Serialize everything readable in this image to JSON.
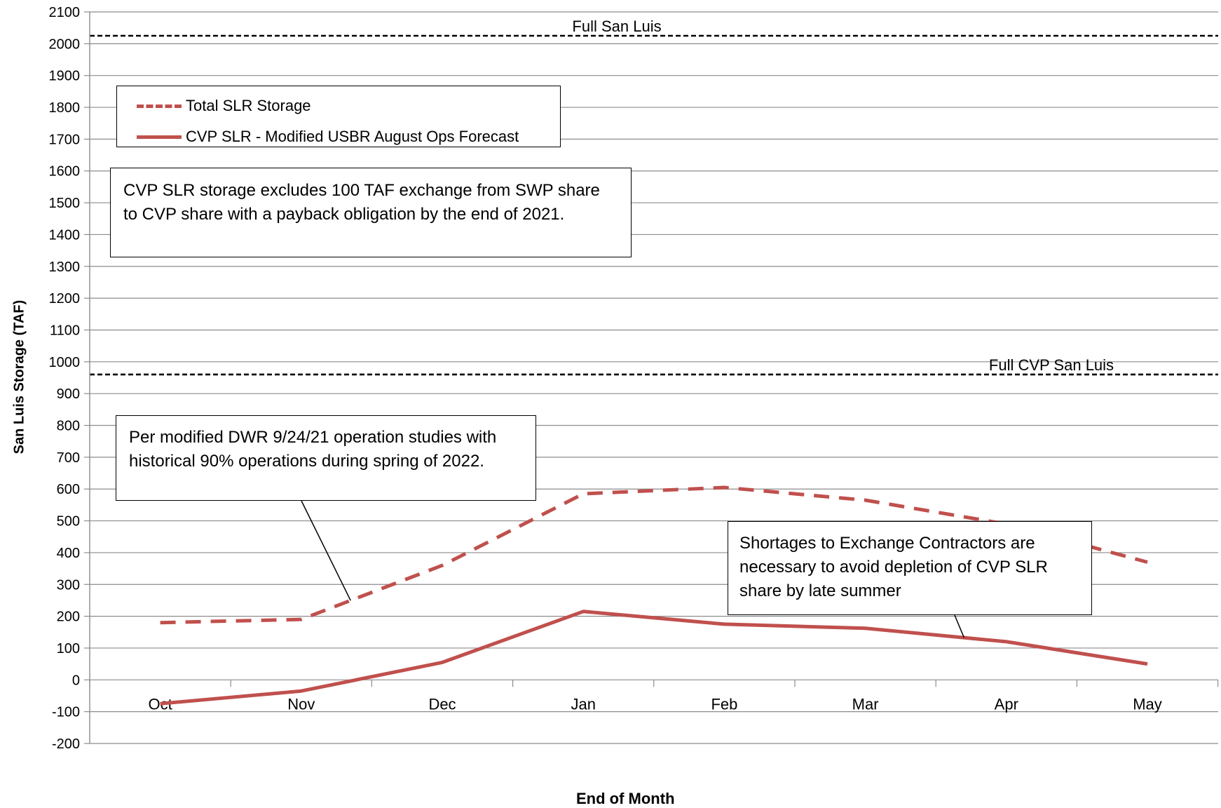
{
  "chart_data": {
    "type": "line",
    "xlabel": "End of Month",
    "ylabel": "San Luis Storage (TAF)",
    "categories": [
      "Oct",
      "Nov",
      "Dec",
      "Jan",
      "Feb",
      "Mar",
      "Apr",
      "May"
    ],
    "ylim": [
      -200,
      2100
    ],
    "yticks": [
      "2100",
      "2000",
      "1900",
      "1800",
      "1700",
      "1600",
      "1500",
      "1400",
      "1300",
      "1200",
      "1100",
      "1000",
      "900",
      "800",
      "700",
      "600",
      "500",
      "400",
      "300",
      "200",
      "100",
      "0",
      "-100",
      "-200"
    ],
    "grid": true,
    "series": [
      {
        "name": "Total SLR Storage",
        "style": "dashed",
        "color": "#c0504d",
        "values": [
          180,
          190,
          360,
          585,
          605,
          565,
          490,
          370
        ]
      },
      {
        "name": "CVP SLR - Modified USBR August Ops Forecast",
        "style": "solid",
        "color": "#c0504d",
        "values": [
          -75,
          -35,
          55,
          215,
          175,
          162,
          120,
          50
        ]
      }
    ],
    "reference_lines": [
      {
        "label": "Full  San Luis",
        "value": 2025
      },
      {
        "label": "Full CVP San Luis",
        "value": 960
      }
    ],
    "annotations": [
      {
        "text": "CVP SLR  storage excludes 100 TAF exchange from SWP share to CVP share with a payback obligation by the end of 2021."
      },
      {
        "text": "Per modified DWR 9/24/21 operation studies with historical 90% operations during spring of 2022."
      },
      {
        "text": "Shortages to Exchange Contractors are necessary to avoid depletion of CVP SLR share by late summer"
      }
    ]
  }
}
